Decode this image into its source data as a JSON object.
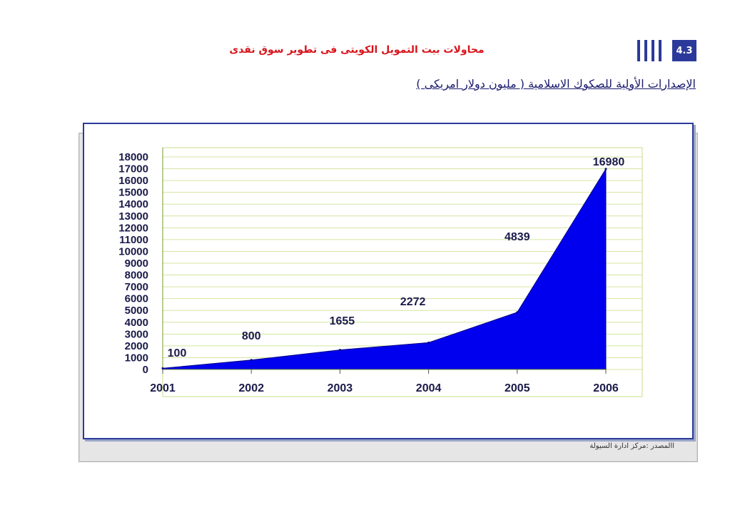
{
  "header": {
    "title": "محاولات بيت التمويل الكويتى فى تطوير سوق نقدى",
    "section_number": "4.3",
    "accent_color": "#2b3a9a",
    "title_color": "#d8141c"
  },
  "subtitle": "الإصدارات الأولية للصكوك الاسلامية ( مليون دولار امريكى )",
  "source": "االمصدر :مركز ادارة السيولة",
  "chart_data": {
    "type": "area",
    "x": [
      "2001",
      "2002",
      "2003",
      "2004",
      "2005",
      "2006"
    ],
    "values": [
      100,
      800,
      1655,
      2272,
      4839,
      16980
    ],
    "data_labels": [
      "100",
      "800",
      "1655",
      "2272",
      "4839",
      "16980"
    ],
    "ylim": [
      0,
      18000
    ],
    "yticks": [
      0,
      1000,
      2000,
      3000,
      4000,
      5000,
      6000,
      7000,
      8000,
      9000,
      10000,
      11000,
      12000,
      13000,
      14000,
      15000,
      16000,
      17000,
      18000
    ],
    "grid": true,
    "fill_color": "#0000ee",
    "grid_color": "#d4e6a0",
    "title": "",
    "xlabel": "",
    "ylabel": ""
  }
}
